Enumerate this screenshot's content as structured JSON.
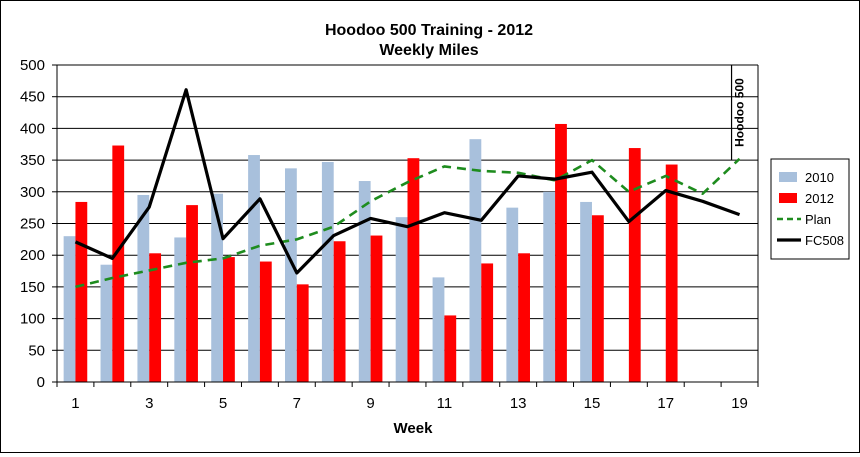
{
  "chart_data": {
    "type": "bar",
    "title": "Hoodoo 500 Training - 2012",
    "subtitle": "Weekly Miles",
    "xlabel": "Week",
    "ylabel": "",
    "ylim": [
      0,
      500
    ],
    "y_ticks": [
      0,
      50,
      100,
      150,
      200,
      250,
      300,
      350,
      400,
      450,
      500
    ],
    "x_ticks": [
      1,
      3,
      5,
      7,
      9,
      11,
      13,
      15,
      17,
      19
    ],
    "categories": [
      1,
      2,
      3,
      4,
      5,
      6,
      7,
      8,
      9,
      10,
      11,
      12,
      13,
      14,
      15,
      16,
      17,
      18,
      19
    ],
    "grid": "horizontal",
    "legend_position": "right",
    "series": [
      {
        "name": "2010",
        "kind": "bar",
        "color": "#a8c0dc",
        "values": [
          230,
          185,
          295,
          228,
          297,
          358,
          337,
          347,
          317,
          260,
          165,
          383,
          275,
          300,
          284,
          null,
          null,
          null,
          null
        ]
      },
      {
        "name": "2012",
        "kind": "bar",
        "color": "#ff0000",
        "values": [
          284,
          373,
          203,
          279,
          197,
          190,
          154,
          222,
          231,
          353,
          105,
          187,
          203,
          407,
          263,
          369,
          343,
          null,
          null
        ]
      },
      {
        "name": "Plan",
        "kind": "line",
        "style": "dashed",
        "color": "#1e8c1e",
        "values": [
          150,
          164,
          176,
          188,
          195,
          215,
          225,
          245,
          285,
          315,
          340,
          333,
          330,
          318,
          350,
          300,
          325,
          297,
          352
        ]
      },
      {
        "name": "FC508",
        "kind": "line",
        "style": "solid",
        "color": "#000000",
        "values": [
          221,
          195,
          276,
          461,
          226,
          289,
          172,
          231,
          258,
          245,
          267,
          255,
          325,
          320,
          331,
          253,
          302,
          285,
          264
        ]
      }
    ],
    "annotation": {
      "text": "Hoodoo 500",
      "x": 19
    }
  }
}
